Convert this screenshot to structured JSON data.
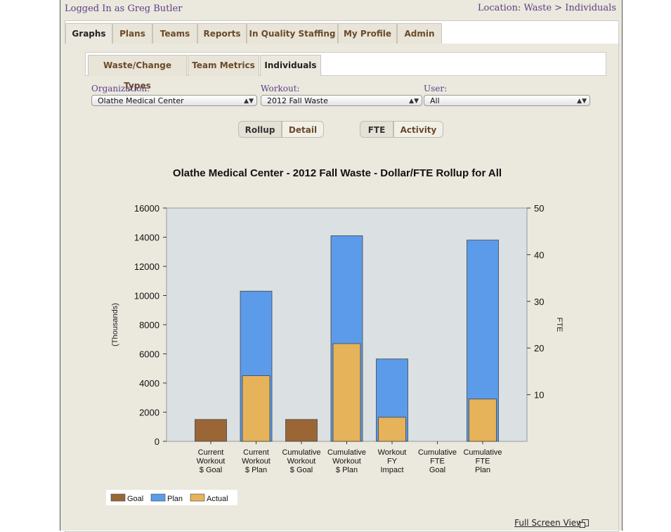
{
  "header": {
    "logged_in": "Logged In as Greg Butler",
    "location": "Location: Waste > Individuals"
  },
  "tabs": [
    {
      "label": "Graphs"
    },
    {
      "label": "Plans"
    },
    {
      "label": "Teams"
    },
    {
      "label": "Reports"
    },
    {
      "label": "In Quality Staffing"
    },
    {
      "label": "My Profile"
    },
    {
      "label": "Admin"
    }
  ],
  "subtabs": [
    {
      "label": "Waste/Change Types"
    },
    {
      "label": "Team Metrics"
    },
    {
      "label": "Individuals"
    }
  ],
  "filters": {
    "organization": {
      "label": "Organization:",
      "value": "Olathe Medical Center"
    },
    "workout": {
      "label": "Workout:",
      "value": "2012 Fall Waste"
    },
    "user": {
      "label": "User:",
      "value": "All"
    }
  },
  "view_toggle": {
    "rollup": "Rollup",
    "detail": "Detail"
  },
  "metric_toggle": {
    "fte": "FTE",
    "activity": "Activity"
  },
  "full_screen_label": "Full Screen View",
  "chart_data": {
    "type": "bar",
    "title": "Olathe Medical Center - 2012 Fall Waste - Dollar/FTE Rollup for All",
    "ylabel": "(Thousands)",
    "y2label": "FTE",
    "ylim": [
      0,
      16000
    ],
    "y2lim": [
      0,
      50
    ],
    "yticks": [
      "0",
      "2000",
      "4000",
      "6000",
      "8000",
      "10000",
      "12000",
      "14000",
      "16000"
    ],
    "y2ticks": [
      "10",
      "20",
      "30",
      "40",
      "50"
    ],
    "categories": [
      [
        "Current",
        "Workout",
        "$ Goal"
      ],
      [
        "Current",
        "Workout",
        "$ Plan"
      ],
      [
        "Cumulative",
        "Workout",
        "$ Goal"
      ],
      [
        "Cumulative",
        "Workout",
        "$ Plan"
      ],
      [
        "Workout",
        "FY",
        "Impact"
      ],
      [
        "Cumulative",
        "FTE",
        "Goal"
      ],
      [
        "Cumulative",
        "FTE",
        "Plan"
      ]
    ],
    "series": [
      {
        "name": "Goal",
        "color": "#9b6636",
        "values": [
          1500,
          null,
          1500,
          null,
          null,
          null,
          null
        ]
      },
      {
        "name": "Plan",
        "color": "#5b9bea",
        "values": [
          null,
          10300,
          null,
          14100,
          5650,
          null,
          13800
        ]
      },
      {
        "name": "Actual",
        "color": "#e6b35a",
        "values": [
          null,
          4500,
          null,
          6700,
          1650,
          null,
          2900
        ]
      }
    ],
    "legend_position": "bottom-left",
    "plot_background": "#dbe0e2"
  }
}
